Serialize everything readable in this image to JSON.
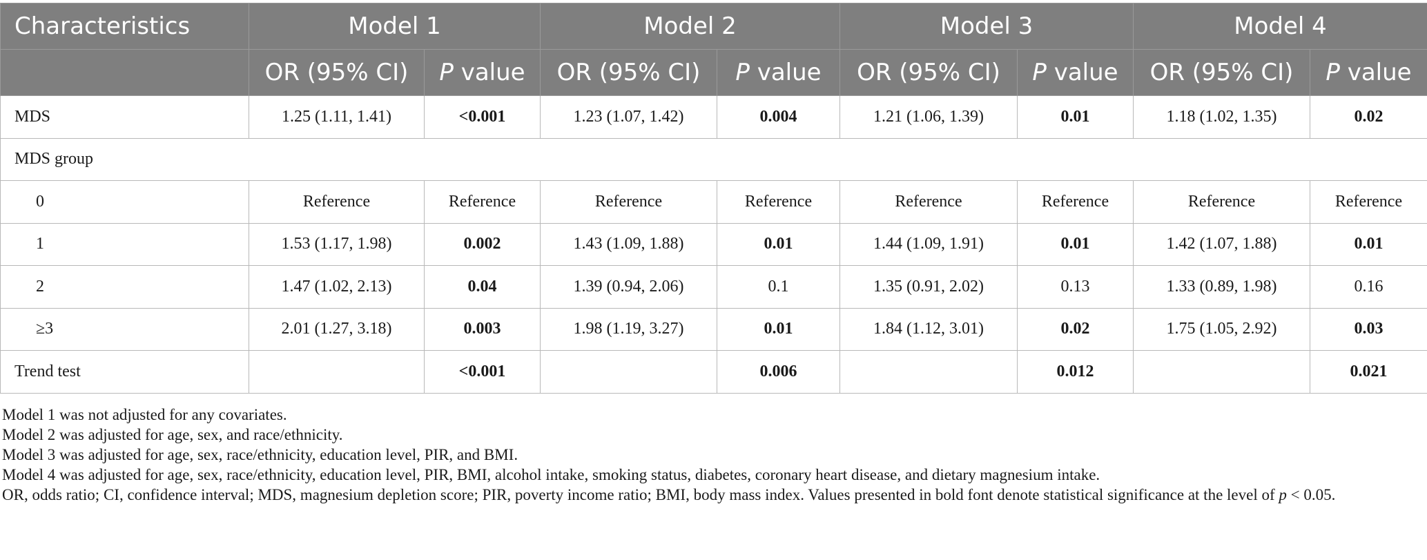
{
  "table": {
    "header_row1": {
      "characteristics": "Characteristics",
      "models": [
        "Model 1",
        "Model 2",
        "Model 3",
        "Model 4"
      ]
    },
    "header_row2": {
      "or_label": "OR (95% CI)",
      "p_italic": "P",
      "p_rest": " value"
    },
    "rows": [
      {
        "label": "MDS",
        "cells": [
          {
            "or": "1.25 (1.11, 1.41)",
            "p": "<0.001",
            "bold": true
          },
          {
            "or": "1.23 (1.07, 1.42)",
            "p": "0.004",
            "bold": true
          },
          {
            "or": "1.21 (1.06, 1.39)",
            "p": "0.01",
            "bold": true
          },
          {
            "or": "1.18 (1.02, 1.35)",
            "p": "0.02",
            "bold": true
          }
        ]
      },
      {
        "label": "MDS group"
      },
      {
        "label": "0",
        "cells": [
          {
            "or": "Reference",
            "p": "Reference",
            "bold": false
          },
          {
            "or": "Reference",
            "p": "Reference",
            "bold": false
          },
          {
            "or": "Reference",
            "p": "Reference",
            "bold": false
          },
          {
            "or": "Reference",
            "p": "Reference",
            "bold": false
          }
        ]
      },
      {
        "label": "1",
        "cells": [
          {
            "or": "1.53 (1.17, 1.98)",
            "p": "0.002",
            "bold": true
          },
          {
            "or": "1.43 (1.09, 1.88)",
            "p": "0.01",
            "bold": true
          },
          {
            "or": "1.44 (1.09, 1.91)",
            "p": "0.01",
            "bold": true
          },
          {
            "or": "1.42 (1.07, 1.88)",
            "p": "0.01",
            "bold": true
          }
        ]
      },
      {
        "label": "2",
        "cells": [
          {
            "or": "1.47 (1.02, 2.13)",
            "p": "0.04",
            "bold": true
          },
          {
            "or": "1.39 (0.94, 2.06)",
            "p": "0.1",
            "bold": false
          },
          {
            "or": "1.35 (0.91, 2.02)",
            "p": "0.13",
            "bold": false
          },
          {
            "or": "1.33 (0.89, 1.98)",
            "p": "0.16",
            "bold": false
          }
        ]
      },
      {
        "label": "≥3",
        "cells": [
          {
            "or": "2.01 (1.27, 3.18)",
            "p": "0.003",
            "bold": true
          },
          {
            "or": "1.98 (1.19, 3.27)",
            "p": "0.01",
            "bold": true
          },
          {
            "or": "1.84 (1.12, 3.01)",
            "p": "0.02",
            "bold": true
          },
          {
            "or": "1.75 (1.05, 2.92)",
            "p": "0.03",
            "bold": true
          }
        ]
      },
      {
        "label": "Trend test",
        "cells": [
          {
            "or": "",
            "p": "<0.001",
            "bold": true
          },
          {
            "or": "",
            "p": "0.006",
            "bold": true
          },
          {
            "or": "",
            "p": "0.012",
            "bold": true
          },
          {
            "or": "",
            "p": "0.021",
            "bold": true
          }
        ]
      }
    ]
  },
  "notes": {
    "n1": "Model 1 was not adjusted for any covariates.",
    "n2": "Model 2 was adjusted for age, sex, and race/ethnicity.",
    "n3": "Model 3 was adjusted for age, sex, race/ethnicity, education level, PIR, and BMI.",
    "n4": "Model 4 was adjusted for age, sex, race/ethnicity, education level, PIR, BMI, alcohol intake, smoking status, diabetes, coronary heart disease, and dietary magnesium intake.",
    "n5_a": "OR, odds ratio; CI, confidence interval; MDS, magnesium depletion score; PIR, poverty income ratio; BMI, body mass index. Values presented in bold font denote statistical significance at the level of ",
    "n5_p": "p",
    "n5_b": " < 0.05."
  }
}
